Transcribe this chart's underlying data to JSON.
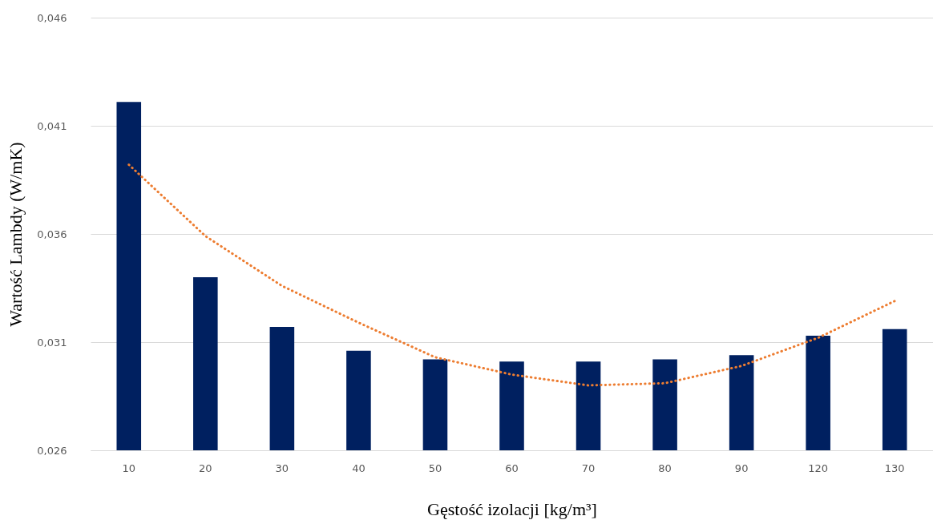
{
  "chart_data": {
    "type": "bar",
    "xlabel": "Gęstość izolacji [kg/m³]",
    "ylabel": "Wartość Lambdy (W/mK)",
    "categories": [
      "10",
      "20",
      "30",
      "40",
      "50",
      "60",
      "70",
      "80",
      "90",
      "120",
      "130"
    ],
    "series": [
      {
        "color": "#002060",
        "values": [
          0.0421,
          0.034,
          0.0317,
          0.0306,
          0.0302,
          0.0301,
          0.0301,
          0.0302,
          0.0304,
          0.0313,
          0.0316
        ]
      },
      {
        "type": "line",
        "color": "#ed7d31",
        "line_style": "dotted",
        "marker": "none",
        "x": [
          "10",
          "20",
          "30",
          "40",
          "50",
          "60",
          "70",
          "80",
          "90",
          "120",
          "130"
        ],
        "values": [
          0.0392,
          0.0359,
          0.0336,
          0.0319,
          0.0303,
          0.0295,
          0.029,
          0.0291,
          0.0299,
          0.0312,
          0.0329
        ]
      }
    ],
    "ylim": [
      0.026,
      0.046
    ],
    "yticks": [
      {
        "value": 0.026,
        "label": "0,026"
      },
      {
        "value": 0.031,
        "label": "0,031"
      },
      {
        "value": 0.036,
        "label": "0,036"
      },
      {
        "value": 0.041,
        "label": "0,041"
      },
      {
        "value": 0.046,
        "label": "0,046"
      }
    ],
    "grid": "y"
  }
}
